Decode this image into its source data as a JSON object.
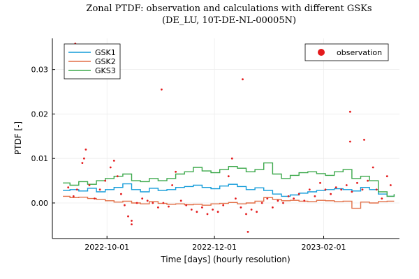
{
  "chart_data": {
    "type": "line",
    "title": "Zonal PTDF: observation and calculations with different GSKs",
    "subtitle": "(DE_LU, 10T-DE-NL-00005N)",
    "xlabel": "Time [days] (hourly resolution)",
    "ylabel": "PTDF [-]",
    "xlim": [
      "2022-08-31",
      "2023-03-16"
    ],
    "ylim": [
      -0.008,
      0.037
    ],
    "xticks": [
      "2022-10-01",
      "2022-12-01",
      "2023-02-01"
    ],
    "yticks": [
      0.0,
      0.01,
      0.02,
      0.03
    ],
    "ytick_labels": [
      "0.00",
      "0.01",
      "0.02",
      "0.03"
    ],
    "grid": true,
    "legend_lines_position": "top-left",
    "legend_scatter_position": "top-right",
    "series": [
      {
        "name": "GSK1",
        "color": "#129bd9",
        "kind": "step",
        "points": [
          [
            "2022-09-06",
            0.0028
          ],
          [
            "2022-09-10",
            0.003
          ],
          [
            "2022-09-15",
            0.0027
          ],
          [
            "2022-09-20",
            0.0033
          ],
          [
            "2022-09-25",
            0.0025
          ],
          [
            "2022-09-30",
            0.003
          ],
          [
            "2022-10-05",
            0.0035
          ],
          [
            "2022-10-10",
            0.0043
          ],
          [
            "2022-10-15",
            0.003
          ],
          [
            "2022-10-20",
            0.0025
          ],
          [
            "2022-10-25",
            0.0033
          ],
          [
            "2022-10-30",
            0.0028
          ],
          [
            "2022-11-04",
            0.003
          ],
          [
            "2022-11-09",
            0.0035
          ],
          [
            "2022-11-14",
            0.0037
          ],
          [
            "2022-11-19",
            0.004
          ],
          [
            "2022-11-24",
            0.0035
          ],
          [
            "2022-11-29",
            0.0032
          ],
          [
            "2022-12-04",
            0.0038
          ],
          [
            "2022-12-09",
            0.0042
          ],
          [
            "2022-12-14",
            0.0037
          ],
          [
            "2022-12-19",
            0.003
          ],
          [
            "2022-12-24",
            0.0034
          ],
          [
            "2022-12-29",
            0.0028
          ],
          [
            "2023-01-03",
            0.002
          ],
          [
            "2023-01-08",
            0.0015
          ],
          [
            "2023-01-13",
            0.0018
          ],
          [
            "2023-01-18",
            0.0022
          ],
          [
            "2023-01-23",
            0.0025
          ],
          [
            "2023-01-28",
            0.0028
          ],
          [
            "2023-02-02",
            0.003
          ],
          [
            "2023-02-07",
            0.0032
          ],
          [
            "2023-02-12",
            0.003
          ],
          [
            "2023-02-17",
            0.0027
          ],
          [
            "2023-02-22",
            0.0035
          ],
          [
            "2023-02-27",
            0.003
          ],
          [
            "2023-03-04",
            0.002
          ],
          [
            "2023-03-09",
            0.0015
          ],
          [
            "2023-03-13",
            0.0018
          ]
        ]
      },
      {
        "name": "GSK2",
        "color": "#e26f46",
        "kind": "step",
        "points": [
          [
            "2022-09-06",
            0.0015
          ],
          [
            "2022-09-10",
            0.0012
          ],
          [
            "2022-09-15",
            0.0013
          ],
          [
            "2022-09-20",
            0.001
          ],
          [
            "2022-09-25",
            0.0008
          ],
          [
            "2022-09-30",
            0.0005
          ],
          [
            "2022-10-05",
            0.0002
          ],
          [
            "2022-10-10",
            0.0004
          ],
          [
            "2022-10-15",
            0.0
          ],
          [
            "2022-10-20",
            -0.0002
          ],
          [
            "2022-10-25",
            0.0003
          ],
          [
            "2022-10-30",
            -0.0001
          ],
          [
            "2022-11-04",
            -0.0003
          ],
          [
            "2022-11-09",
            -0.0002
          ],
          [
            "2022-11-14",
            -0.0004
          ],
          [
            "2022-11-19",
            -0.0003
          ],
          [
            "2022-11-24",
            -0.0005
          ],
          [
            "2022-11-29",
            -0.0002
          ],
          [
            "2022-12-04",
            -0.0001
          ],
          [
            "2022-12-09",
            0.0001
          ],
          [
            "2022-12-14",
            -0.0002
          ],
          [
            "2022-12-19",
            0.0
          ],
          [
            "2022-12-24",
            0.0004
          ],
          [
            "2022-12-29",
            0.0012
          ],
          [
            "2023-01-03",
            0.0008
          ],
          [
            "2023-01-08",
            0.0005
          ],
          [
            "2023-01-13",
            0.0006
          ],
          [
            "2023-01-18",
            0.0004
          ],
          [
            "2023-01-23",
            0.0003
          ],
          [
            "2023-01-28",
            0.0006
          ],
          [
            "2023-02-02",
            0.0005
          ],
          [
            "2023-02-07",
            0.0003
          ],
          [
            "2023-02-12",
            0.0004
          ],
          [
            "2023-02-17",
            -0.0012
          ],
          [
            "2023-02-22",
            0.0002
          ],
          [
            "2023-02-27",
            0.0
          ],
          [
            "2023-03-04",
            0.0003
          ],
          [
            "2023-03-09",
            0.0004
          ],
          [
            "2023-03-13",
            0.0004
          ]
        ]
      },
      {
        "name": "GKS3",
        "color": "#3ba84a",
        "kind": "step",
        "points": [
          [
            "2022-09-06",
            0.0045
          ],
          [
            "2022-09-10",
            0.004
          ],
          [
            "2022-09-15",
            0.0048
          ],
          [
            "2022-09-20",
            0.0042
          ],
          [
            "2022-09-25",
            0.005
          ],
          [
            "2022-09-30",
            0.0055
          ],
          [
            "2022-10-05",
            0.006
          ],
          [
            "2022-10-10",
            0.0065
          ],
          [
            "2022-10-15",
            0.005
          ],
          [
            "2022-10-20",
            0.0048
          ],
          [
            "2022-10-25",
            0.0055
          ],
          [
            "2022-10-30",
            0.005
          ],
          [
            "2022-11-04",
            0.0055
          ],
          [
            "2022-11-09",
            0.0065
          ],
          [
            "2022-11-14",
            0.007
          ],
          [
            "2022-11-19",
            0.008
          ],
          [
            "2022-11-24",
            0.0072
          ],
          [
            "2022-11-29",
            0.0068
          ],
          [
            "2022-12-04",
            0.0075
          ],
          [
            "2022-12-09",
            0.0082
          ],
          [
            "2022-12-14",
            0.0078
          ],
          [
            "2022-12-19",
            0.007
          ],
          [
            "2022-12-24",
            0.0075
          ],
          [
            "2022-12-29",
            0.009
          ],
          [
            "2023-01-03",
            0.0065
          ],
          [
            "2023-01-08",
            0.0055
          ],
          [
            "2023-01-13",
            0.0062
          ],
          [
            "2023-01-18",
            0.0068
          ],
          [
            "2023-01-23",
            0.007
          ],
          [
            "2023-01-28",
            0.0066
          ],
          [
            "2023-02-02",
            0.0062
          ],
          [
            "2023-02-07",
            0.007
          ],
          [
            "2023-02-12",
            0.0075
          ],
          [
            "2023-02-17",
            0.0055
          ],
          [
            "2023-02-22",
            0.006
          ],
          [
            "2023-02-27",
            0.005
          ],
          [
            "2023-03-04",
            0.0025
          ],
          [
            "2023-03-09",
            0.0015
          ],
          [
            "2023-03-13",
            0.002
          ]
        ]
      },
      {
        "name": "observation",
        "color": "#e41a1c",
        "kind": "scatter",
        "points": [
          [
            "2022-09-09",
            0.0035
          ],
          [
            "2022-09-12",
            0.0015
          ],
          [
            "2022-09-14",
            0.003
          ],
          [
            "2022-09-17",
            0.009
          ],
          [
            "2022-09-18",
            0.01
          ],
          [
            "2022-09-19",
            0.012
          ],
          [
            "2022-09-21",
            0.004
          ],
          [
            "2022-09-24",
            0.001
          ],
          [
            "2022-09-27",
            0.003
          ],
          [
            "2022-09-30",
            0.005
          ],
          [
            "2022-10-03",
            0.008
          ],
          [
            "2022-10-05",
            0.0095
          ],
          [
            "2022-10-07",
            0.006
          ],
          [
            "2022-10-09",
            0.002
          ],
          [
            "2022-10-11",
            -0.0005
          ],
          [
            "2022-10-13",
            -0.003
          ],
          [
            "2022-10-15",
            -0.004
          ],
          [
            "2022-10-18",
            0.0
          ],
          [
            "2022-10-21",
            0.001
          ],
          [
            "2022-10-24",
            0.0005
          ],
          [
            "2022-10-27",
            0.0
          ],
          [
            "2022-10-30",
            -0.001
          ],
          [
            "2022-11-02",
            0.0
          ],
          [
            "2022-11-05",
            -0.0008
          ],
          [
            "2022-11-07",
            0.004
          ],
          [
            "2022-11-09",
            0.007
          ],
          [
            "2022-11-12",
            0.0005
          ],
          [
            "2022-11-15",
            -0.0005
          ],
          [
            "2022-11-18",
            -0.0015
          ],
          [
            "2022-11-21",
            -0.002
          ],
          [
            "2022-11-24",
            -0.001
          ],
          [
            "2022-11-27",
            -0.0025
          ],
          [
            "2022-11-30",
            -0.0015
          ],
          [
            "2022-12-03",
            -0.002
          ],
          [
            "2022-12-06",
            -0.0005
          ],
          [
            "2022-12-09",
            0.006
          ],
          [
            "2022-12-11",
            0.01
          ],
          [
            "2022-12-13",
            0.001
          ],
          [
            "2022-12-16",
            -0.001
          ],
          [
            "2022-12-19",
            -0.0025
          ],
          [
            "2022-12-22",
            -0.0015
          ],
          [
            "2022-12-25",
            -0.002
          ],
          [
            "2022-12-28",
            0.0
          ],
          [
            "2022-12-31",
            0.001
          ],
          [
            "2023-01-03",
            -0.001
          ],
          [
            "2023-01-06",
            0.0005
          ],
          [
            "2023-01-09",
            0.0
          ],
          [
            "2023-01-12",
            0.0015
          ],
          [
            "2023-01-15",
            0.001
          ],
          [
            "2023-01-18",
            0.002
          ],
          [
            "2023-01-21",
            0.0005
          ],
          [
            "2023-01-24",
            0.003
          ],
          [
            "2023-01-27",
            0.0015
          ],
          [
            "2023-01-30",
            0.0045
          ],
          [
            "2023-02-02",
            0.003
          ],
          [
            "2023-02-05",
            0.002
          ],
          [
            "2023-02-08",
            0.0035
          ],
          [
            "2023-02-11",
            0.003
          ],
          [
            "2023-02-14",
            0.004
          ],
          [
            "2023-02-17",
            0.0025
          ],
          [
            "2023-02-20",
            0.0045
          ],
          [
            "2023-02-23",
            0.003
          ],
          [
            "2023-02-26",
            0.005
          ],
          [
            "2023-03-01",
            0.008
          ],
          [
            "2023-03-03",
            0.003
          ],
          [
            "2023-03-06",
            0.001
          ],
          [
            "2023-03-09",
            0.006
          ],
          [
            "2023-03-11",
            0.004
          ],
          [
            "2022-09-13",
            0.0358
          ],
          [
            "2022-11-01",
            0.0255
          ],
          [
            "2022-12-17",
            0.0278
          ],
          [
            "2023-02-16",
            0.0205
          ],
          [
            "2023-02-16",
            0.0138
          ],
          [
            "2023-02-24",
            0.0142
          ],
          [
            "2022-12-20",
            -0.0065
          ],
          [
            "2022-10-15",
            -0.0048
          ]
        ]
      }
    ]
  }
}
